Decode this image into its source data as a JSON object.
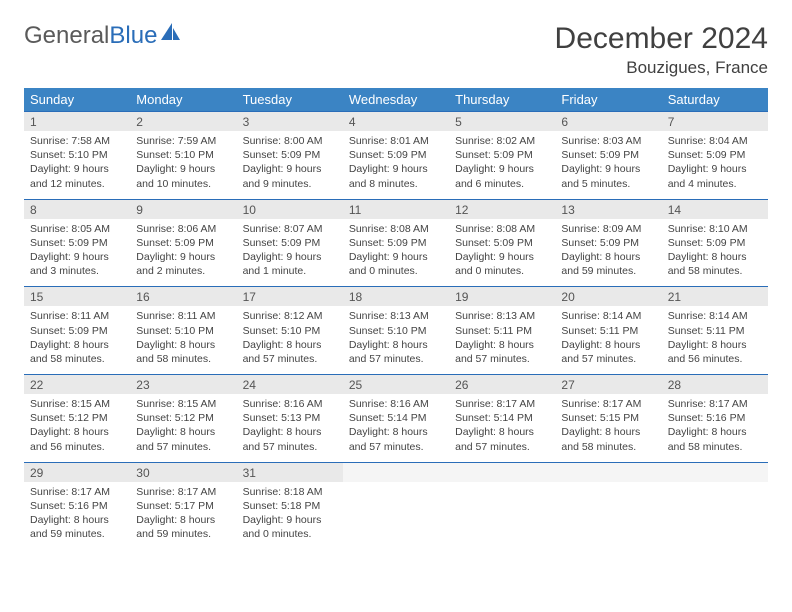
{
  "logo": {
    "text1": "General",
    "text2": "Blue"
  },
  "title": "December 2024",
  "location": "Bouzigues, France",
  "style": {
    "header_bg": "#3b84c4",
    "header_text": "#ffffff",
    "daynum_bg": "#e9e9e9",
    "week_border": "#2a6db8",
    "body_text": "#444444",
    "page_bg": "#ffffff",
    "title_fontsize": 30,
    "location_fontsize": 17,
    "daynum_fontsize": 12,
    "detail_fontsize": 10.5,
    "columns": 7,
    "cell_padding": "3px 6px"
  },
  "weekdays": [
    "Sunday",
    "Monday",
    "Tuesday",
    "Wednesday",
    "Thursday",
    "Friday",
    "Saturday"
  ],
  "weeks": [
    [
      {
        "n": "1",
        "sunrise": "7:58 AM",
        "sunset": "5:10 PM",
        "dlh": "9",
        "dlm": "12"
      },
      {
        "n": "2",
        "sunrise": "7:59 AM",
        "sunset": "5:10 PM",
        "dlh": "9",
        "dlm": "10"
      },
      {
        "n": "3",
        "sunrise": "8:00 AM",
        "sunset": "5:09 PM",
        "dlh": "9",
        "dlm": "9"
      },
      {
        "n": "4",
        "sunrise": "8:01 AM",
        "sunset": "5:09 PM",
        "dlh": "9",
        "dlm": "8"
      },
      {
        "n": "5",
        "sunrise": "8:02 AM",
        "sunset": "5:09 PM",
        "dlh": "9",
        "dlm": "6"
      },
      {
        "n": "6",
        "sunrise": "8:03 AM",
        "sunset": "5:09 PM",
        "dlh": "9",
        "dlm": "5"
      },
      {
        "n": "7",
        "sunrise": "8:04 AM",
        "sunset": "5:09 PM",
        "dlh": "9",
        "dlm": "4"
      }
    ],
    [
      {
        "n": "8",
        "sunrise": "8:05 AM",
        "sunset": "5:09 PM",
        "dlh": "9",
        "dlm": "3"
      },
      {
        "n": "9",
        "sunrise": "8:06 AM",
        "sunset": "5:09 PM",
        "dlh": "9",
        "dlm": "2"
      },
      {
        "n": "10",
        "sunrise": "8:07 AM",
        "sunset": "5:09 PM",
        "dlh": "9",
        "dlm": "1"
      },
      {
        "n": "11",
        "sunrise": "8:08 AM",
        "sunset": "5:09 PM",
        "dlh": "9",
        "dlm": "0"
      },
      {
        "n": "12",
        "sunrise": "8:08 AM",
        "sunset": "5:09 PM",
        "dlh": "9",
        "dlm": "0"
      },
      {
        "n": "13",
        "sunrise": "8:09 AM",
        "sunset": "5:09 PM",
        "dlh": "8",
        "dlm": "59"
      },
      {
        "n": "14",
        "sunrise": "8:10 AM",
        "sunset": "5:09 PM",
        "dlh": "8",
        "dlm": "58"
      }
    ],
    [
      {
        "n": "15",
        "sunrise": "8:11 AM",
        "sunset": "5:09 PM",
        "dlh": "8",
        "dlm": "58"
      },
      {
        "n": "16",
        "sunrise": "8:11 AM",
        "sunset": "5:10 PM",
        "dlh": "8",
        "dlm": "58"
      },
      {
        "n": "17",
        "sunrise": "8:12 AM",
        "sunset": "5:10 PM",
        "dlh": "8",
        "dlm": "57"
      },
      {
        "n": "18",
        "sunrise": "8:13 AM",
        "sunset": "5:10 PM",
        "dlh": "8",
        "dlm": "57"
      },
      {
        "n": "19",
        "sunrise": "8:13 AM",
        "sunset": "5:11 PM",
        "dlh": "8",
        "dlm": "57"
      },
      {
        "n": "20",
        "sunrise": "8:14 AM",
        "sunset": "5:11 PM",
        "dlh": "8",
        "dlm": "57"
      },
      {
        "n": "21",
        "sunrise": "8:14 AM",
        "sunset": "5:11 PM",
        "dlh": "8",
        "dlm": "56"
      }
    ],
    [
      {
        "n": "22",
        "sunrise": "8:15 AM",
        "sunset": "5:12 PM",
        "dlh": "8",
        "dlm": "56"
      },
      {
        "n": "23",
        "sunrise": "8:15 AM",
        "sunset": "5:12 PM",
        "dlh": "8",
        "dlm": "57"
      },
      {
        "n": "24",
        "sunrise": "8:16 AM",
        "sunset": "5:13 PM",
        "dlh": "8",
        "dlm": "57"
      },
      {
        "n": "25",
        "sunrise": "8:16 AM",
        "sunset": "5:14 PM",
        "dlh": "8",
        "dlm": "57"
      },
      {
        "n": "26",
        "sunrise": "8:17 AM",
        "sunset": "5:14 PM",
        "dlh": "8",
        "dlm": "57"
      },
      {
        "n": "27",
        "sunrise": "8:17 AM",
        "sunset": "5:15 PM",
        "dlh": "8",
        "dlm": "58"
      },
      {
        "n": "28",
        "sunrise": "8:17 AM",
        "sunset": "5:16 PM",
        "dlh": "8",
        "dlm": "58"
      }
    ],
    [
      {
        "n": "29",
        "sunrise": "8:17 AM",
        "sunset": "5:16 PM",
        "dlh": "8",
        "dlm": "59"
      },
      {
        "n": "30",
        "sunrise": "8:17 AM",
        "sunset": "5:17 PM",
        "dlh": "8",
        "dlm": "59"
      },
      {
        "n": "31",
        "sunrise": "8:18 AM",
        "sunset": "5:18 PM",
        "dlh": "9",
        "dlm": "0"
      },
      null,
      null,
      null,
      null
    ]
  ],
  "labels": {
    "sunrise_prefix": "Sunrise: ",
    "sunset_prefix": "Sunset: ",
    "daylight_prefix": "Daylight: ",
    "hours_word": " hours",
    "and_word": "and ",
    "minutes_word_dot": " minutes.",
    "minute_word_dot": " minute."
  }
}
